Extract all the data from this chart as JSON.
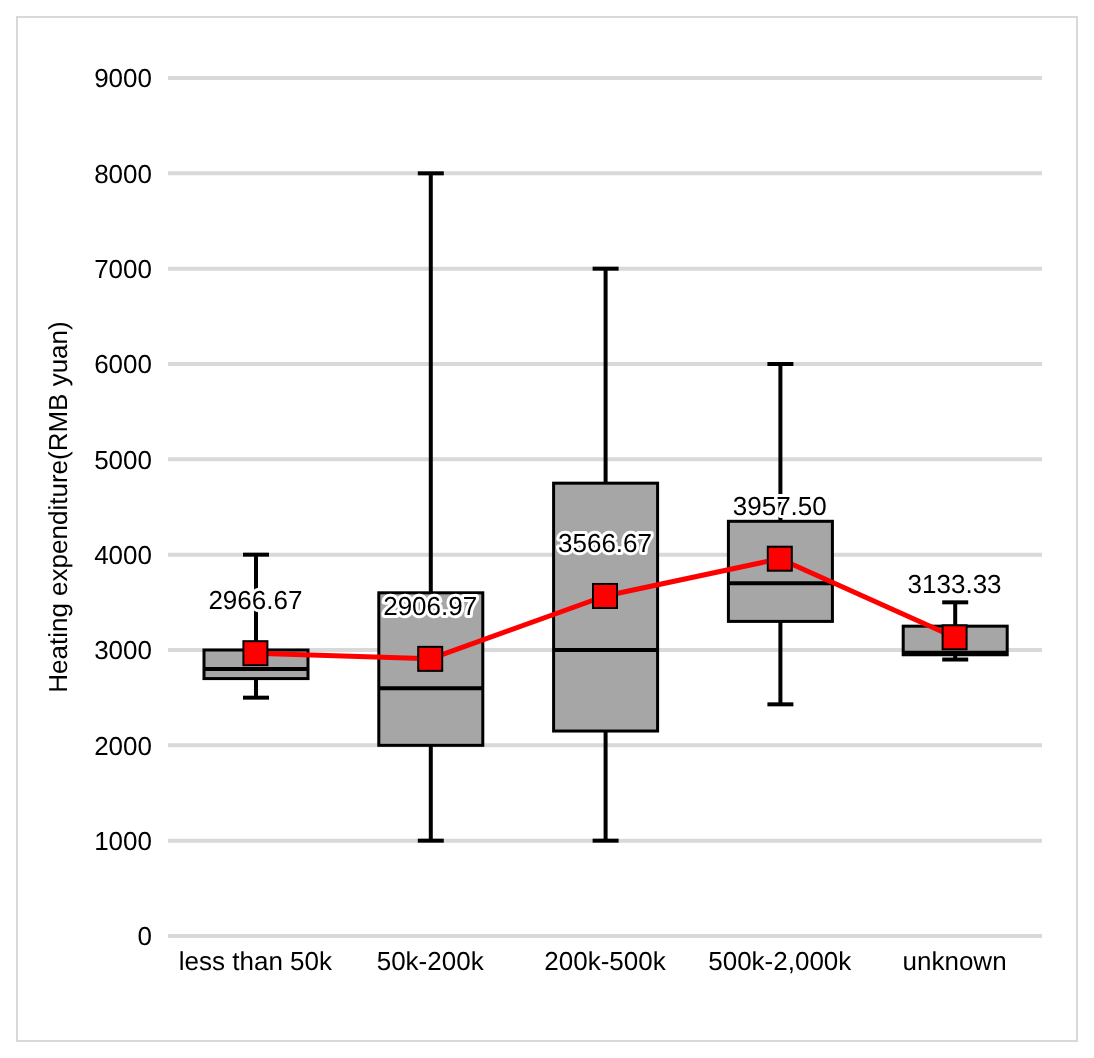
{
  "chart_data": {
    "type": "box",
    "ylabel": "Heating expenditure(RMB yuan)",
    "categories": [
      "less than 50k",
      "50k-200k",
      "200k-500k",
      "500k-2,000k",
      "unknown"
    ],
    "ylim": [
      0,
      9000
    ],
    "yticks": [
      0,
      1000,
      2000,
      3000,
      4000,
      5000,
      6000,
      7000,
      8000,
      9000
    ],
    "grid": "y",
    "legend": false,
    "series": [
      {
        "type": "box",
        "color": "#a6a6a6",
        "boxes": [
          {
            "low": 2500,
            "q1": 2700,
            "median": 2800,
            "q3": 3000,
            "high": 4000
          },
          {
            "low": 1000,
            "q1": 2000,
            "median": 2600,
            "q3": 3600,
            "high": 8000
          },
          {
            "low": 1000,
            "q1": 2150,
            "median": 3000,
            "q3": 4750,
            "high": 7000
          },
          {
            "low": 2430,
            "q1": 3300,
            "median": 3700,
            "q3": 4350,
            "high": 6000
          },
          {
            "low": 2900,
            "q1": 2950,
            "median": 2970,
            "q3": 3250,
            "high": 3500
          }
        ]
      },
      {
        "type": "line",
        "color": "#ff0000",
        "marker": "square",
        "values": [
          2966.67,
          2906.97,
          3566.67,
          3957.5,
          3133.33
        ],
        "value_labels": [
          "2966.67",
          "2906.97",
          "3566.67",
          "3957.50",
          "3133.33"
        ]
      }
    ]
  }
}
